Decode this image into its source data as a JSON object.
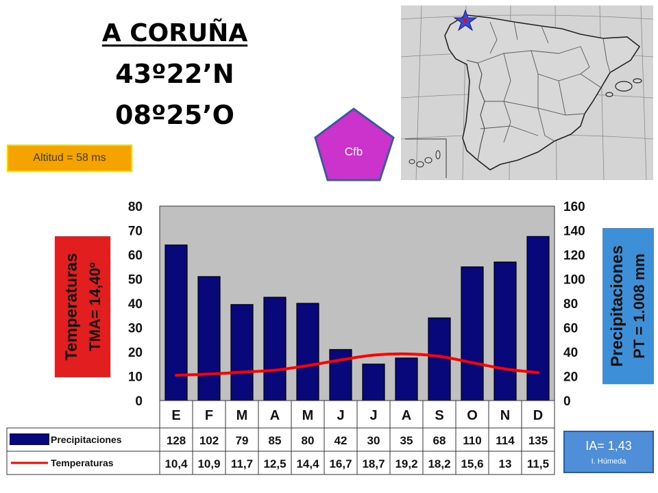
{
  "header": {
    "city": "A CORUÑA",
    "latitude": "43º22’N",
    "longitude": "08º25’O"
  },
  "altitude": "Altitud = 58 ms",
  "koppen": "Cfb",
  "map_marker": "star-icon",
  "aridity": {
    "index": "IA= 1,43",
    "label": "I. Húmeda"
  },
  "colors": {
    "bars": "#08087a",
    "temp_line": "#ff0000",
    "plot_bg": "#c0c0c0",
    "left_label_bg": "#e31e1e",
    "right_label_bg": "#3d8fd8",
    "altitude_bg": "#f5a300",
    "koppen_bg": "#cc33cc",
    "aridity_bg": "#4f8ed8"
  },
  "chart_data": {
    "type": "bar",
    "categories": [
      "E",
      "F",
      "M",
      "A",
      "M",
      "J",
      "J",
      "A",
      "S",
      "O",
      "N",
      "D"
    ],
    "series": [
      {
        "name": "Precipitaciones",
        "type": "bar",
        "axis": "right",
        "values": [
          128,
          102,
          79,
          85,
          80,
          42,
          30,
          35,
          68,
          110,
          114,
          135
        ],
        "labels": [
          "128",
          "102",
          "79",
          "85",
          "80",
          "42",
          "30",
          "35",
          "68",
          "110",
          "114",
          "135"
        ]
      },
      {
        "name": "Temperaturas",
        "type": "line",
        "axis": "left",
        "values": [
          10.4,
          10.9,
          11.7,
          12.5,
          14.4,
          16.7,
          18.7,
          19.2,
          18.2,
          15.6,
          13,
          11.5
        ],
        "labels": [
          "10,4",
          "10,9",
          "11,7",
          "12,5",
          "14,4",
          "16,7",
          "18,7",
          "19,2",
          "18,2",
          "15,6",
          "13",
          "11,5"
        ]
      }
    ],
    "left_axis": {
      "title": "Temperaturas",
      "subtitle": "TMA= 14,40º",
      "ylim": [
        0,
        80
      ],
      "ticks": [
        "0",
        "10",
        "20",
        "30",
        "40",
        "50",
        "60",
        "70",
        "80"
      ]
    },
    "right_axis": {
      "title": "Precipitaciones",
      "subtitle": "PT = 1.008 mm",
      "ylim": [
        0,
        160
      ],
      "ticks": [
        "0",
        "20",
        "40",
        "60",
        "80",
        "100",
        "120",
        "140",
        "160"
      ]
    },
    "grid": false,
    "legend": "table-below"
  }
}
